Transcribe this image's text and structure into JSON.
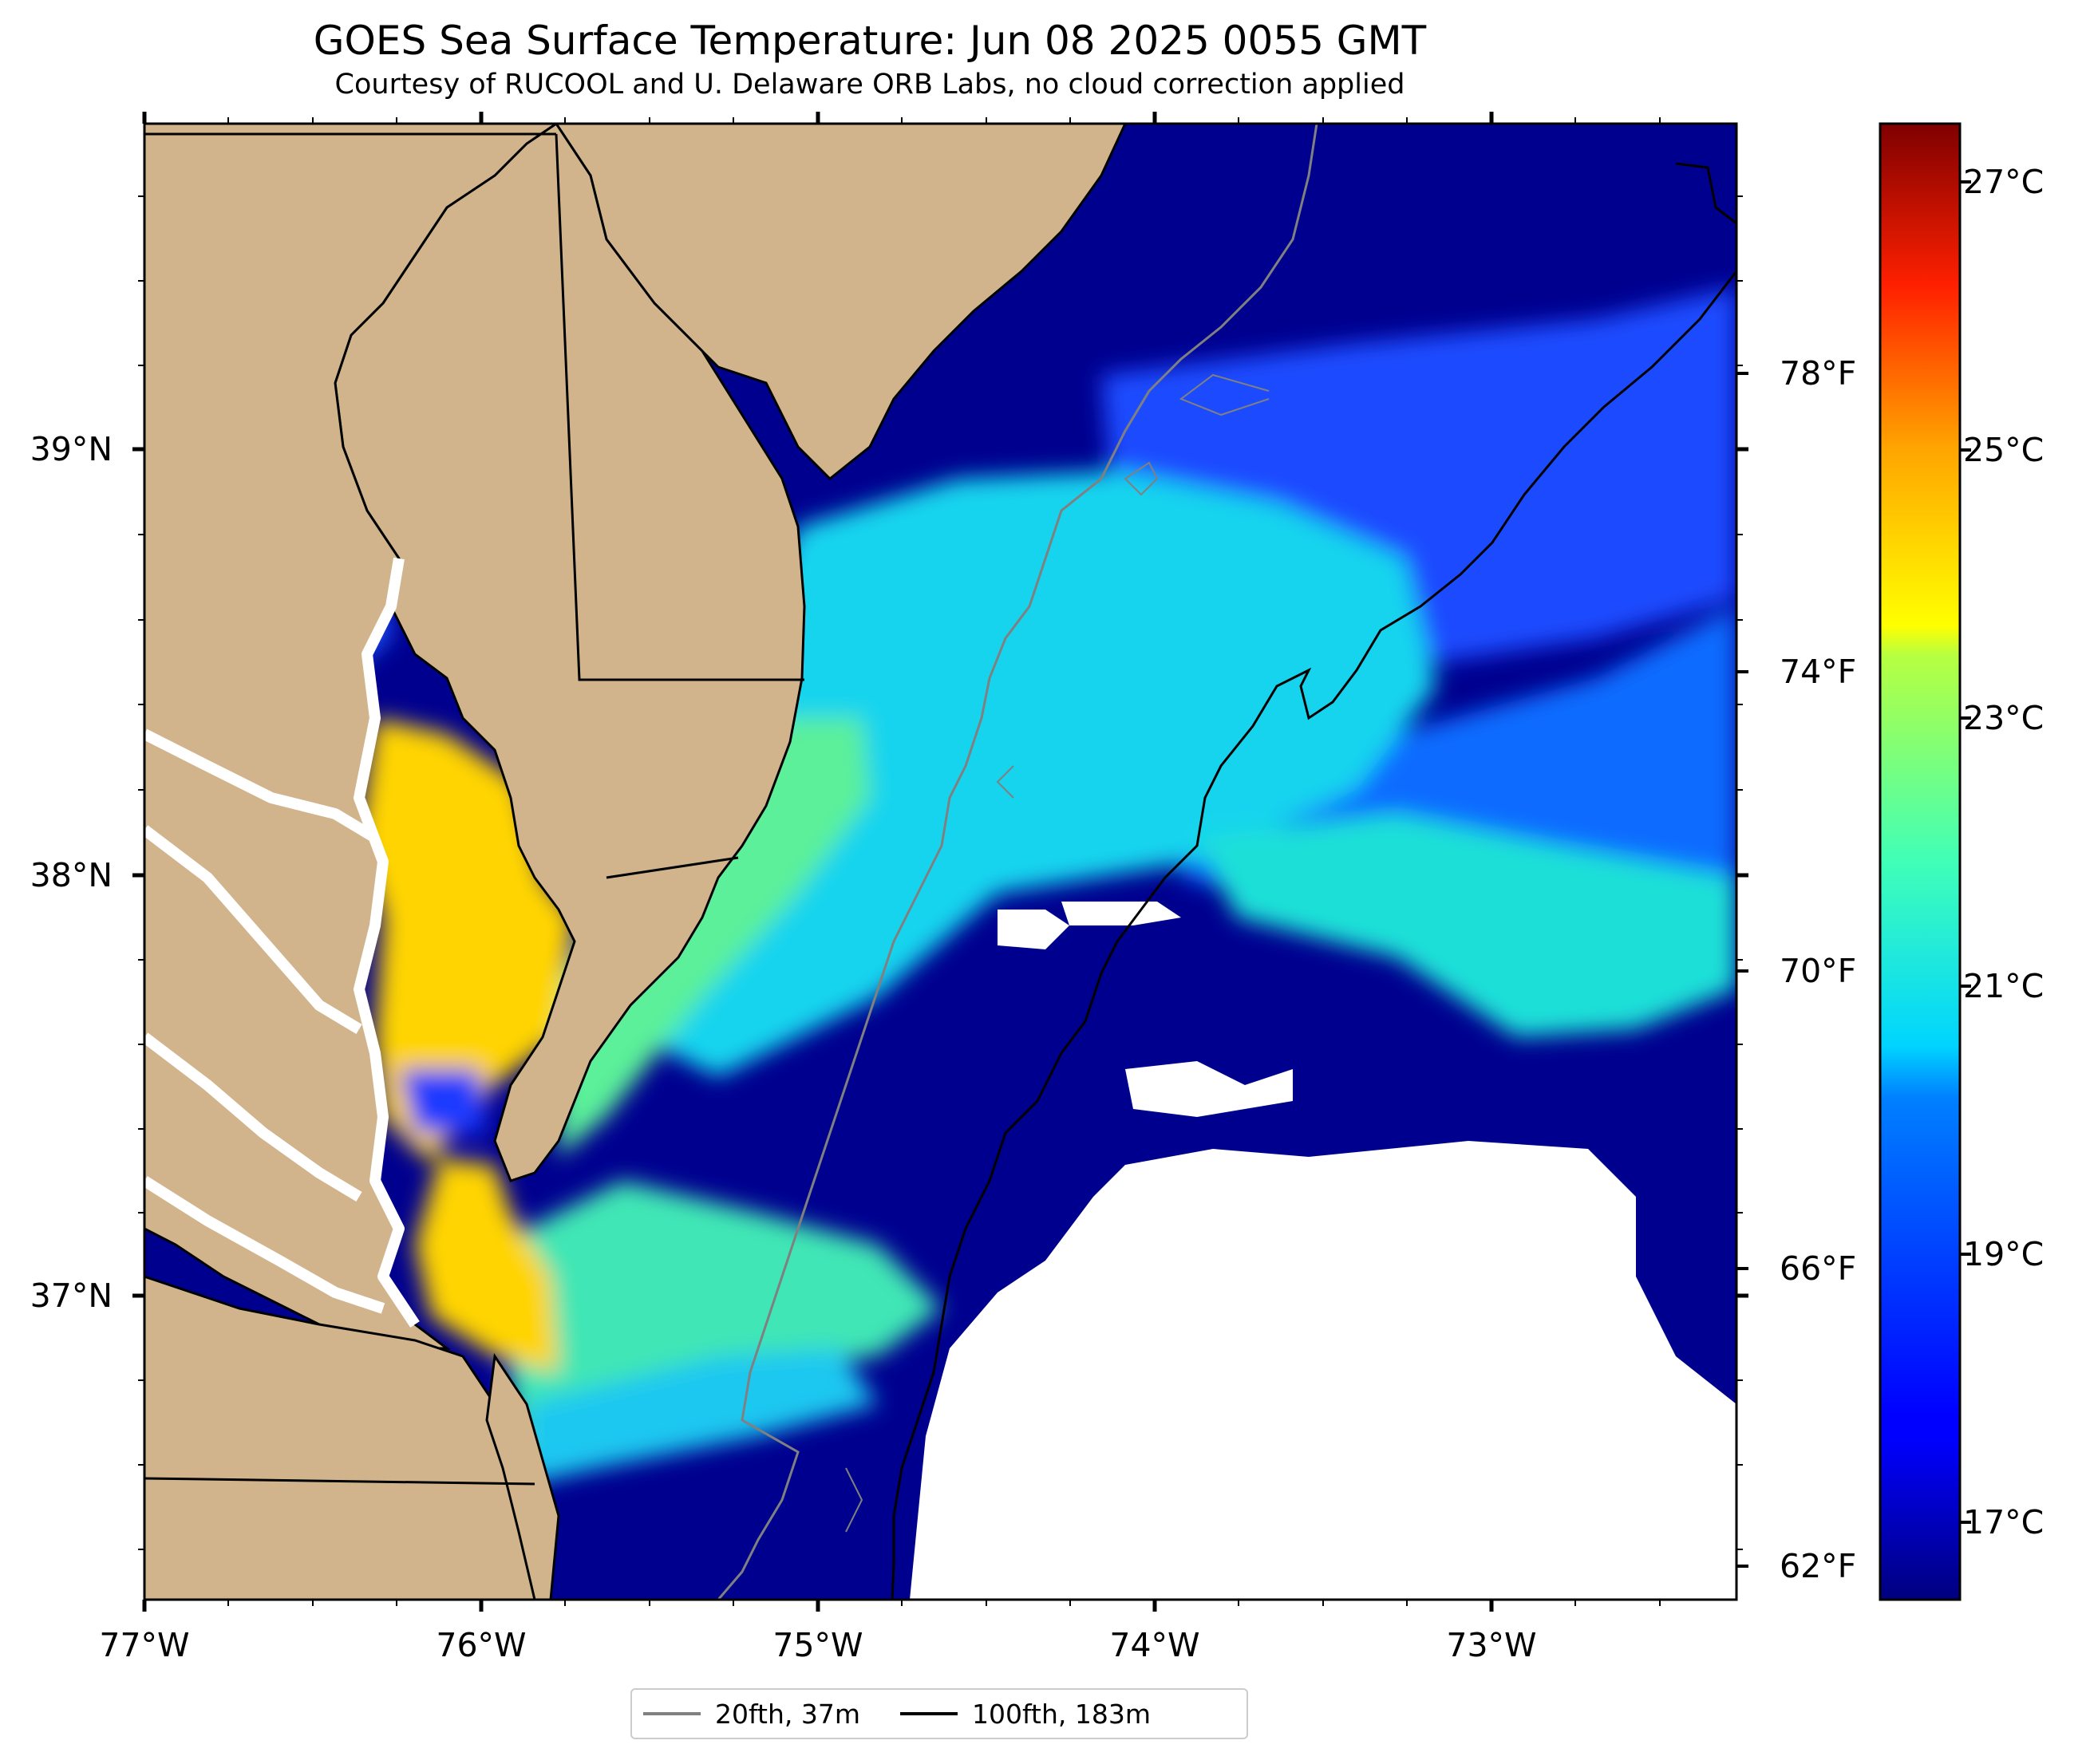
{
  "title": "GOES Sea Surface Temperature: Jun 08 2025 0055 GMT",
  "subtitle": "Courtesy of RUCOOL and U. Delaware ORB Labs, no cloud correction applied",
  "map": {
    "extent": {
      "lon": [
        -77.0,
        -72.27
      ],
      "lat": [
        36.27,
        39.77
      ]
    },
    "land_color": "#d2b48c",
    "no_data_color": "#ffffff",
    "longitude_ticks": [
      "77°W",
      "76°W",
      "75°W",
      "74°W",
      "73°W"
    ],
    "latitude_ticks": [
      "39°N",
      "38°N",
      "37°N"
    ],
    "colormap": "jet",
    "sst_range_c": [
      16.0,
      27.5
    ]
  },
  "colorbar": {
    "celsius_ticks": [
      "27°C",
      "25°C",
      "23°C",
      "21°C",
      "19°C",
      "17°C"
    ],
    "fahrenheit_ticks": [
      "78°F",
      "74°F",
      "70°F",
      "66°F",
      "62°F"
    ]
  },
  "legend": {
    "items": [
      {
        "label": "20fth, 37m",
        "color": "#808080"
      },
      {
        "label": "100fth, 183m",
        "color": "#000000"
      }
    ]
  }
}
